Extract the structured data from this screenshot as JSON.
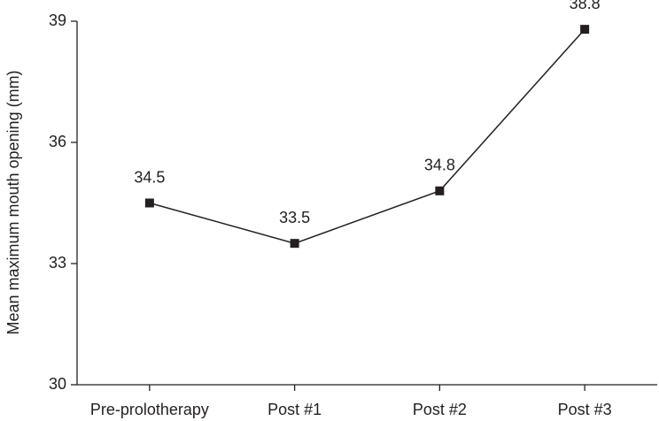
{
  "chart_data": {
    "type": "line",
    "y_label": "Mean maximum mouth opening (mm)",
    "categories": [
      "Pre-prolotherapy",
      "Post #1",
      "Post #2",
      "Post #3"
    ],
    "series": [
      {
        "name": "Mean maximum mouth opening",
        "color": "#231f20",
        "values": [
          34.5,
          33.5,
          34.8,
          38.8
        ]
      }
    ],
    "ylim": [
      30,
      39
    ],
    "yticks": [
      30,
      33,
      36,
      39
    ],
    "grid": false,
    "data_labels": true
  }
}
